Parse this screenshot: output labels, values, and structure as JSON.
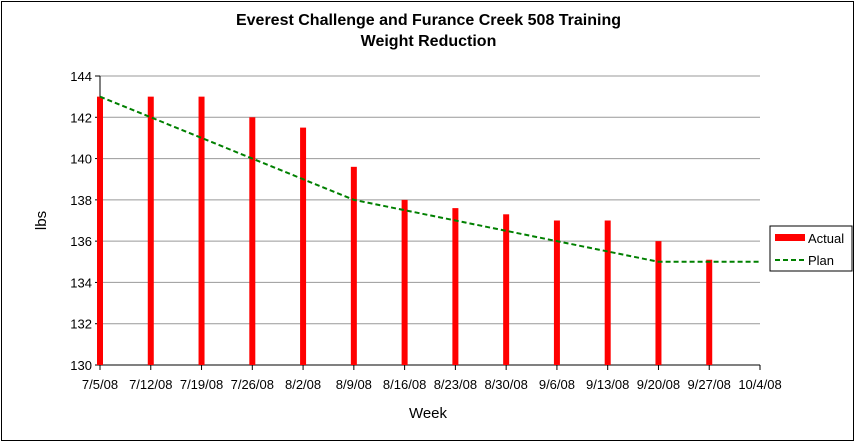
{
  "chart_data": {
    "type": "bar",
    "title": "Everest Challenge and Furance Creek 508 Training",
    "subtitle": "Weight Reduction",
    "xlabel": "Week",
    "ylabel": "lbs",
    "ylim": [
      130,
      144
    ],
    "yticks": [
      130,
      132,
      134,
      136,
      138,
      140,
      142,
      144
    ],
    "grid": true,
    "legend_position": "right",
    "categories": [
      "7/5/08",
      "7/12/08",
      "7/19/08",
      "7/26/08",
      "8/2/08",
      "8/9/08",
      "8/16/08",
      "8/23/08",
      "8/30/08",
      "9/6/08",
      "9/13/08",
      "9/20/08",
      "9/27/08",
      "10/4/08"
    ],
    "series": [
      {
        "name": "Actual",
        "type": "bar",
        "color": "#ff0000",
        "values": [
          143,
          143,
          143,
          142,
          141.5,
          139.6,
          138,
          137.6,
          137.3,
          137,
          137,
          136,
          135.1,
          null
        ]
      },
      {
        "name": "Plan",
        "type": "line",
        "style": "dashed",
        "color": "#008000",
        "values": [
          143,
          142,
          141,
          140,
          139,
          138,
          137.5,
          137,
          136.5,
          136,
          135.5,
          135,
          135,
          135
        ]
      }
    ]
  }
}
